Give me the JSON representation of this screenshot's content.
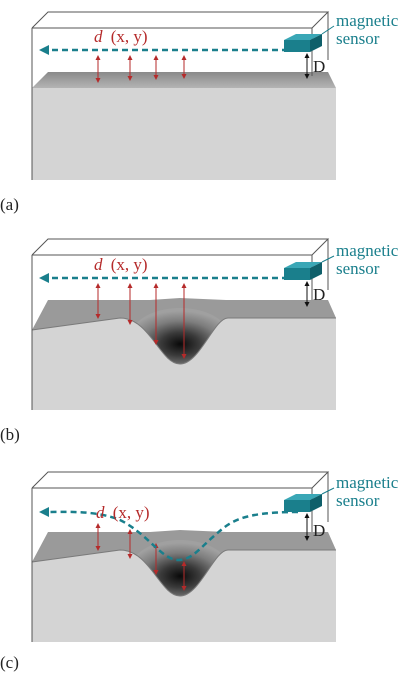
{
  "panels": [
    {
      "id": "a",
      "label": "(a)",
      "function_label": {
        "d": "d",
        "args": "(x, y)"
      },
      "sensor_label_line1": "magnetic",
      "sensor_label_line2": "sensor",
      "distance_label": "D",
      "surface": "flat",
      "path": "straight"
    },
    {
      "id": "b",
      "label": "(b)",
      "function_label": {
        "d": "d",
        "args": "(x, y)"
      },
      "sensor_label_line1": "magnetic",
      "sensor_label_line2": "sensor",
      "distance_label": "D",
      "surface": "dip",
      "path": "straight"
    },
    {
      "id": "c",
      "label": "(c)",
      "function_label": {
        "d": "d",
        "args": "(x, y)"
      },
      "sensor_label_line1": "magnetic",
      "sensor_label_line2": "sensor",
      "distance_label": "D",
      "surface": "dip",
      "path": "following"
    }
  ],
  "colors": {
    "path": "#1a7f8c",
    "sensor": "#1a7f8c",
    "distance_arrow": "#b52a2a",
    "surface_top": "#9a9a9a",
    "surface_front": "#d4d4d4",
    "box_outline": "#555555"
  }
}
